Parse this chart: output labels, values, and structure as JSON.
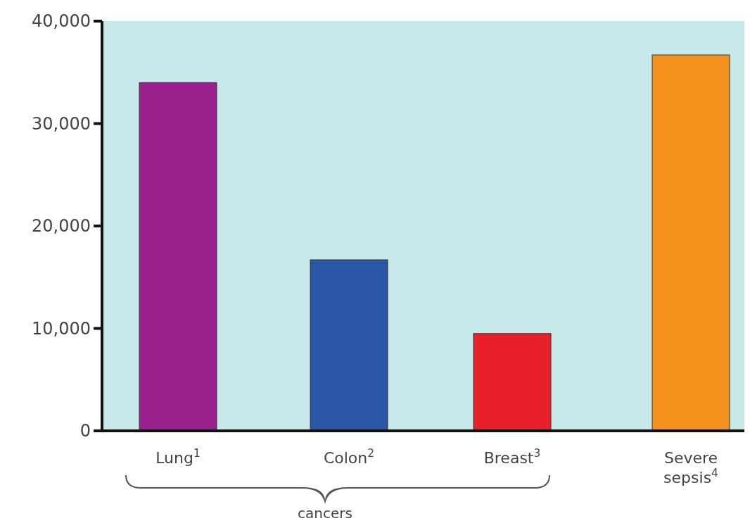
{
  "chart_data": {
    "type": "bar",
    "categories": [
      "Lung$^{1}$",
      "Colon$^{2}$",
      "Breast$^{3}$",
      "Severe sepsis$^{4}$"
    ],
    "values": [
      34000,
      16700,
      9500,
      36700
    ],
    "colors": [
      "#9c1f8e",
      "#2a58a6",
      "#e8202a",
      "#f5921e"
    ],
    "ylim": [
      0,
      40000
    ],
    "yticks": [
      {
        "value": 0,
        "label": "0"
      },
      {
        "value": 10000,
        "label": "10,000"
      },
      {
        "value": 20000,
        "label": "20,000"
      },
      {
        "value": 30000,
        "label": "30,000"
      },
      {
        "value": 40000,
        "label": "40,000"
      }
    ],
    "annotations": [
      {
        "text": "cancers"
      }
    ],
    "grid": false
  }
}
